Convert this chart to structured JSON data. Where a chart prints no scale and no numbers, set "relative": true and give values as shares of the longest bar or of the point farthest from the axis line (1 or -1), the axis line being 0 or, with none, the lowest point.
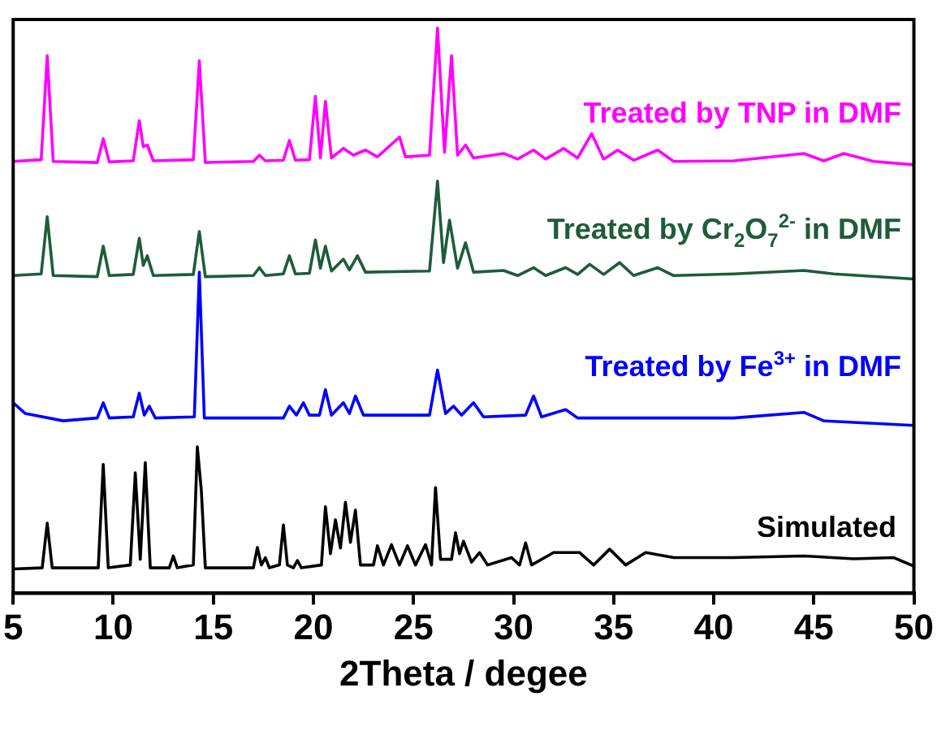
{
  "chart_data": {
    "type": "line",
    "xlabel": "2Theta / degee",
    "xlim": [
      5,
      50
    ],
    "xticks": [
      5,
      10,
      15,
      20,
      25,
      30,
      35,
      40,
      45,
      50
    ],
    "relative": true,
    "grid": false,
    "legend": false,
    "series": [
      {
        "name": "Treated by TNP in DMF",
        "color": "#ff00ff",
        "x": [
          5,
          6.4,
          6.7,
          7.0,
          9.2,
          9.5,
          9.8,
          11.0,
          11.3,
          11.5,
          11.7,
          12.0,
          14.0,
          14.3,
          14.6,
          17.0,
          17.3,
          17.6,
          18.5,
          18.8,
          19.1,
          19.8,
          20.1,
          20.35,
          20.6,
          20.9,
          21.5,
          22.0,
          22.6,
          23.2,
          24.3,
          24.6,
          25.8,
          26.2,
          26.55,
          26.9,
          27.2,
          27.6,
          28.0,
          29.5,
          30.2,
          31.0,
          31.6,
          32.5,
          33.2,
          33.9,
          34.5,
          35.2,
          36.0,
          37.2,
          38.0,
          41,
          44.5,
          45.5,
          46.5,
          48,
          50
        ],
        "values": [
          0.764,
          0.767,
          0.951,
          0.764,
          0.762,
          0.804,
          0.763,
          0.765,
          0.836,
          0.79,
          0.793,
          0.765,
          0.767,
          0.942,
          0.762,
          0.764,
          0.775,
          0.765,
          0.766,
          0.801,
          0.766,
          0.767,
          0.879,
          0.77,
          0.87,
          0.77,
          0.787,
          0.775,
          0.784,
          0.772,
          0.807,
          0.772,
          0.775,
          1,
          0.78,
          0.951,
          0.775,
          0.793,
          0.77,
          0.778,
          0.768,
          0.784,
          0.768,
          0.787,
          0.77,
          0.813,
          0.768,
          0.784,
          0.766,
          0.784,
          0.764,
          0.765,
          0.778,
          0.765,
          0.778,
          0.764,
          0.758
        ]
      },
      {
        "name": "Treated by Cr$_{2}$O$_{7}$$^{2-}$ in DMF",
        "color": "#1e5c3a",
        "x": [
          5,
          6.4,
          6.7,
          7.0,
          9.2,
          9.5,
          9.8,
          11.0,
          11.3,
          11.5,
          11.7,
          12.0,
          14.0,
          14.3,
          14.6,
          17.0,
          17.3,
          17.6,
          18.5,
          18.8,
          19.1,
          19.8,
          20.1,
          20.35,
          20.6,
          20.9,
          21.5,
          21.8,
          22.2,
          22.6,
          25.8,
          26.2,
          26.5,
          26.8,
          27.2,
          27.6,
          28.0,
          29.5,
          30.2,
          31.0,
          31.6,
          32.6,
          33.2,
          33.8,
          34.5,
          35.3,
          36.0,
          37.2,
          38.0,
          41,
          44.5,
          46,
          50
        ],
        "values": [
          0.562,
          0.565,
          0.666,
          0.562,
          0.56,
          0.614,
          0.562,
          0.564,
          0.628,
          0.58,
          0.597,
          0.562,
          0.564,
          0.64,
          0.56,
          0.562,
          0.576,
          0.562,
          0.565,
          0.597,
          0.565,
          0.566,
          0.625,
          0.575,
          0.614,
          0.57,
          0.591,
          0.572,
          0.597,
          0.568,
          0.57,
          0.729,
          0.585,
          0.66,
          0.575,
          0.62,
          0.568,
          0.571,
          0.562,
          0.576,
          0.562,
          0.576,
          0.564,
          0.582,
          0.564,
          0.585,
          0.562,
          0.576,
          0.562,
          0.565,
          0.571,
          0.565,
          0.556
        ]
      },
      {
        "name": "Treated by Fe$^{3+}$ in DMF",
        "color": "#0000ff",
        "x": [
          5,
          5.6,
          7.5,
          9.2,
          9.5,
          9.8,
          11.0,
          11.3,
          11.55,
          11.8,
          12.1,
          14.05,
          14.3,
          14.55,
          18.5,
          18.8,
          19.15,
          19.5,
          19.8,
          20.3,
          20.6,
          20.9,
          21.5,
          21.8,
          22.1,
          22.5,
          25.8,
          26.2,
          26.6,
          27.0,
          27.4,
          28.0,
          28.5,
          30.6,
          31.0,
          31.4,
          32.6,
          33.2,
          41,
          44.5,
          45.5,
          50
        ],
        "values": [
          0.337,
          0.318,
          0.305,
          0.31,
          0.337,
          0.31,
          0.312,
          0.354,
          0.315,
          0.331,
          0.31,
          0.312,
          0.568,
          0.31,
          0.31,
          0.331,
          0.315,
          0.337,
          0.315,
          0.315,
          0.36,
          0.315,
          0.337,
          0.318,
          0.349,
          0.315,
          0.315,
          0.395,
          0.318,
          0.331,
          0.315,
          0.337,
          0.312,
          0.315,
          0.349,
          0.312,
          0.325,
          0.31,
          0.31,
          0.32,
          0.305,
          0.297
        ]
      },
      {
        "name": "Simulated",
        "color": "#000000",
        "x": [
          5,
          6.45,
          6.7,
          6.95,
          9.25,
          9.5,
          9.75,
          10.85,
          11.1,
          11.35,
          11.6,
          11.85,
          12.8,
          13.0,
          13.2,
          14.0,
          14.2,
          14.4,
          14.6,
          17.0,
          17.2,
          17.4,
          17.6,
          17.8,
          18.3,
          18.5,
          18.7,
          19.0,
          19.2,
          19.4,
          20.4,
          20.6,
          20.85,
          21.1,
          21.35,
          21.6,
          21.85,
          22.1,
          22.35,
          23.0,
          23.2,
          23.5,
          23.9,
          24.3,
          24.7,
          25.1,
          25.6,
          25.9,
          26.1,
          26.35,
          26.9,
          27.1,
          27.3,
          27.5,
          27.9,
          28.3,
          28.7,
          29.9,
          30.3,
          30.6,
          30.9,
          32.0,
          33.3,
          34.0,
          34.8,
          35.6,
          36.6,
          38.0,
          41,
          44.5,
          47,
          49,
          50
        ],
        "values": [
          0.043,
          0.045,
          0.124,
          0.045,
          0.045,
          0.228,
          0.045,
          0.05,
          0.213,
          0.06,
          0.231,
          0.045,
          0.045,
          0.066,
          0.045,
          0.05,
          0.259,
          0.182,
          0.045,
          0.045,
          0.081,
          0.05,
          0.063,
          0.045,
          0.05,
          0.121,
          0.05,
          0.045,
          0.058,
          0.045,
          0.05,
          0.153,
          0.07,
          0.13,
          0.08,
          0.161,
          0.09,
          0.147,
          0.05,
          0.05,
          0.084,
          0.05,
          0.086,
          0.05,
          0.084,
          0.05,
          0.086,
          0.05,
          0.187,
          0.06,
          0.06,
          0.107,
          0.07,
          0.092,
          0.055,
          0.072,
          0.05,
          0.063,
          0.05,
          0.089,
          0.05,
          0.072,
          0.072,
          0.05,
          0.078,
          0.05,
          0.072,
          0.063,
          0.063,
          0.066,
          0.061,
          0.063,
          0.048
        ]
      }
    ]
  }
}
